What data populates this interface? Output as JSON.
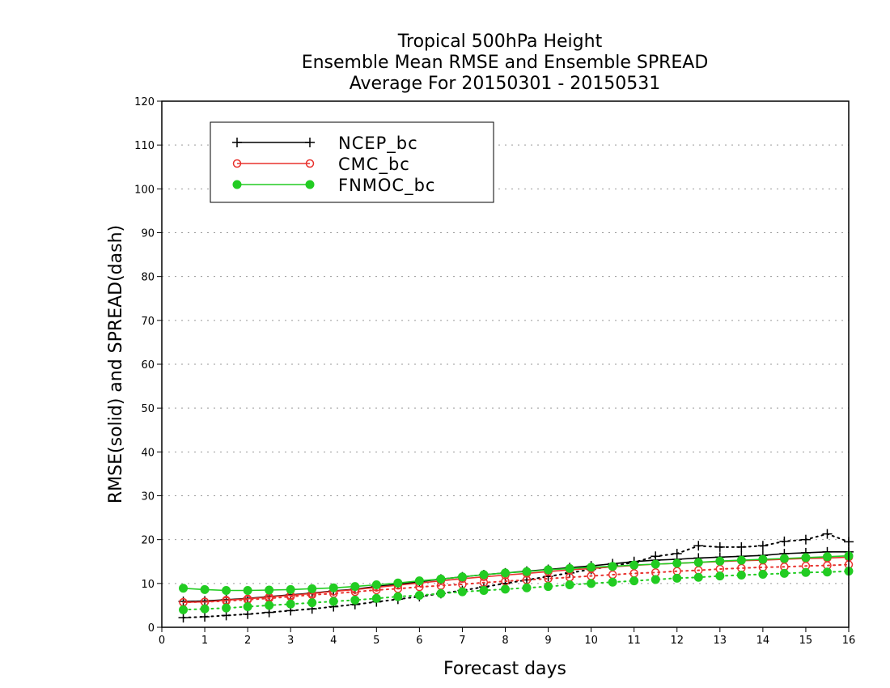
{
  "chart_data": {
    "type": "line",
    "title_lines": [
      "Tropical 500hPa Height",
      "Ensemble Mean RMSE and Ensemble SPREAD",
      "Average For 20150301 - 20150531"
    ],
    "xlabel": "Forecast days",
    "ylabel": "RMSE(solid) and SPREAD(dash)",
    "xlim": [
      0,
      16
    ],
    "ylim": [
      0,
      120
    ],
    "xticks": [
      "0",
      "1",
      "2",
      "3",
      "4",
      "5",
      "6",
      "7",
      "8",
      "9",
      "10",
      "11",
      "12",
      "13",
      "14",
      "15",
      "16"
    ],
    "yticks": [
      "0",
      "10",
      "20",
      "30",
      "40",
      "50",
      "60",
      "70",
      "80",
      "90",
      "100",
      "110",
      "120"
    ],
    "grid": true,
    "legend_position": "top-left",
    "x": [
      0.5,
      1,
      1.5,
      2,
      2.5,
      3,
      3.5,
      4,
      4.5,
      5,
      5.5,
      6,
      6.5,
      7,
      7.5,
      8,
      8.5,
      9,
      9.5,
      10,
      10.5,
      11,
      11.5,
      12,
      12.5,
      13,
      13.5,
      14,
      14.5,
      15,
      15.5,
      16
    ],
    "series": [
      {
        "name": "NCEP_bc",
        "color": "#000000",
        "marker": "plus",
        "rmse": [
          5.9,
          6.0,
          6.3,
          6.6,
          7.0,
          7.4,
          7.8,
          8.3,
          8.7,
          9.3,
          9.8,
          10.4,
          11.0,
          11.5,
          12.0,
          12.4,
          12.8,
          13.2,
          13.6,
          14.0,
          14.5,
          15.0,
          15.3,
          15.5,
          15.8,
          16.0,
          16.2,
          16.4,
          16.8,
          17.0,
          17.2,
          17.2
        ],
        "spread": [
          2.2,
          2.4,
          2.7,
          3.0,
          3.4,
          3.8,
          4.2,
          4.7,
          5.2,
          5.8,
          6.4,
          7.0,
          7.7,
          8.4,
          9.2,
          10.0,
          10.8,
          11.6,
          12.4,
          13.2,
          14.0,
          14.8,
          16.2,
          16.8,
          18.6,
          18.3,
          18.3,
          18.6,
          19.6,
          20.0,
          21.3,
          19.5
        ]
      },
      {
        "name": "CMC_bc",
        "color": "#e8322e",
        "marker": "open-circle",
        "rmse": [
          5.7,
          5.8,
          6.2,
          6.5,
          6.9,
          7.3,
          7.7,
          8.2,
          8.6,
          9.1,
          9.6,
          10.1,
          10.6,
          11.1,
          11.5,
          11.9,
          12.3,
          12.7,
          13.1,
          13.4,
          13.8,
          14.1,
          14.4,
          14.6,
          14.8,
          15.0,
          15.2,
          15.3,
          15.5,
          15.7,
          15.8,
          16.0
        ],
        "spread": [
          5.7,
          5.8,
          6.0,
          6.3,
          6.6,
          7.0,
          7.4,
          7.7,
          8.1,
          8.5,
          8.8,
          9.2,
          9.5,
          9.8,
          10.2,
          10.5,
          10.8,
          11.1,
          11.4,
          11.7,
          12.0,
          12.3,
          12.5,
          12.8,
          13.0,
          13.3,
          13.5,
          13.7,
          13.8,
          14.0,
          14.1,
          14.3
        ]
      },
      {
        "name": "FNMOC_bc",
        "color": "#22cc22",
        "marker": "filled-circle",
        "rmse": [
          8.9,
          8.6,
          8.4,
          8.4,
          8.5,
          8.6,
          8.8,
          9.0,
          9.3,
          9.7,
          10.1,
          10.6,
          11.0,
          11.5,
          12.0,
          12.4,
          12.7,
          13.1,
          13.4,
          13.7,
          13.9,
          14.2,
          14.4,
          14.6,
          14.8,
          15.1,
          15.3,
          15.5,
          15.7,
          15.9,
          16.1,
          16.3
        ],
        "spread": [
          4.0,
          4.2,
          4.4,
          4.7,
          5.0,
          5.3,
          5.6,
          5.9,
          6.2,
          6.6,
          7.0,
          7.3,
          7.7,
          8.1,
          8.4,
          8.7,
          9.0,
          9.3,
          9.7,
          10.0,
          10.3,
          10.6,
          10.9,
          11.2,
          11.4,
          11.7,
          11.9,
          12.1,
          12.3,
          12.5,
          12.6,
          12.8
        ]
      }
    ]
  }
}
